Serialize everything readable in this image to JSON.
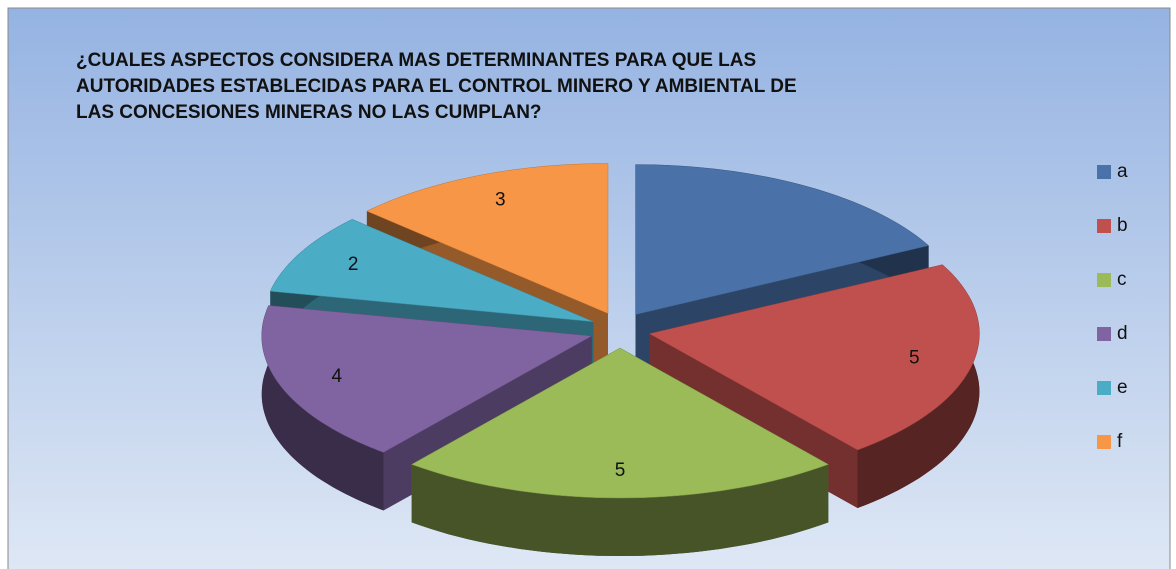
{
  "chart_data": {
    "type": "pie",
    "title": "¿CUALES ASPECTOS CONSIDERA MAS DETERMINANTES PARA QUE LAS AUTORIDADES ESTABLECIDAS PARA EL CONTROL MINERO Y AMBIENTAL DE LAS CONCESIONES MINERAS NO LAS CUMPLAN?",
    "categories": [
      "a",
      "b",
      "c",
      "d",
      "e",
      "f"
    ],
    "values": [
      4,
      5,
      5,
      4,
      2,
      3
    ],
    "value_labels": [
      null,
      "5",
      "5",
      "4",
      "2",
      "3"
    ],
    "colors": [
      "#4a72a8",
      "#c0504d",
      "#9bbb59",
      "#8064a2",
      "#4bacc6",
      "#f79646"
    ],
    "legend": "right"
  }
}
